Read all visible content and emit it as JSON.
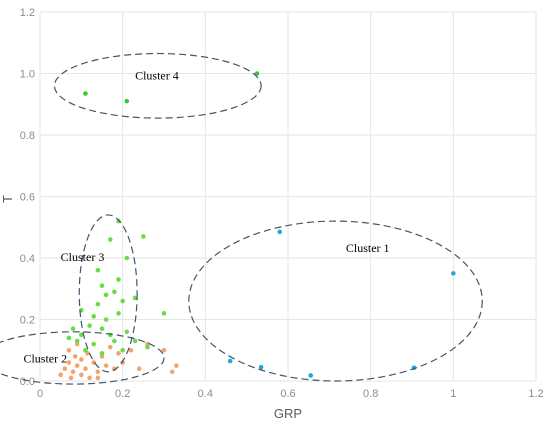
{
  "chart_data": {
    "type": "scatter",
    "xlabel": "GRP",
    "ylabel": "T",
    "xlim": [
      0,
      1.2
    ],
    "ylim": [
      0,
      1.2
    ],
    "xticks": [
      "0",
      "0.2",
      "0.4",
      "0.6",
      "0.8",
      "1",
      "1.2"
    ],
    "yticks": [
      "0.0",
      "0.2",
      "0.4",
      "0.6",
      "0.8",
      "1.0",
      "1.2"
    ],
    "grid": true,
    "colors": {
      "cluster1": "#1fa8e0",
      "cluster2": "#f4a469",
      "cluster3": "#66dd44",
      "cluster4": "#33cc33",
      "outline": "#44546a"
    },
    "series": [
      {
        "points": [
          [
            0.58,
            0.485
          ],
          [
            1.0,
            0.35
          ],
          [
            0.46,
            0.065
          ],
          [
            0.535,
            0.045
          ],
          [
            0.655,
            0.018
          ],
          [
            0.905,
            0.043
          ]
        ]
      },
      {
        "points": [
          [
            0.05,
            0.02
          ],
          [
            0.06,
            0.04
          ],
          [
            0.07,
            0.06
          ],
          [
            0.075,
            0.01
          ],
          [
            0.08,
            0.03
          ],
          [
            0.085,
            0.08
          ],
          [
            0.09,
            0.05
          ],
          [
            0.1,
            0.02
          ],
          [
            0.1,
            0.07
          ],
          [
            0.11,
            0.04
          ],
          [
            0.115,
            0.09
          ],
          [
            0.12,
            0.01
          ],
          [
            0.13,
            0.06
          ],
          [
            0.14,
            0.03
          ],
          [
            0.15,
            0.08
          ],
          [
            0.16,
            0.05
          ],
          [
            0.17,
            0.11
          ],
          [
            0.18,
            0.04
          ],
          [
            0.19,
            0.09
          ],
          [
            0.2,
            0.06
          ],
          [
            0.22,
            0.1
          ],
          [
            0.24,
            0.04
          ],
          [
            0.26,
            0.12
          ],
          [
            0.3,
            0.1
          ],
          [
            0.32,
            0.03
          ],
          [
            0.33,
            0.05
          ],
          [
            0.07,
            0.1
          ],
          [
            0.09,
            0.12
          ],
          [
            0.14,
            0.01
          ]
        ]
      },
      {
        "points": [
          [
            0.19,
            0.52
          ],
          [
            0.25,
            0.47
          ],
          [
            0.17,
            0.46
          ],
          [
            0.21,
            0.4
          ],
          [
            0.14,
            0.36
          ],
          [
            0.19,
            0.33
          ],
          [
            0.15,
            0.31
          ],
          [
            0.16,
            0.28
          ],
          [
            0.18,
            0.29
          ],
          [
            0.14,
            0.25
          ],
          [
            0.2,
            0.26
          ],
          [
            0.23,
            0.27
          ],
          [
            0.1,
            0.23
          ],
          [
            0.13,
            0.21
          ],
          [
            0.16,
            0.2
          ],
          [
            0.19,
            0.22
          ],
          [
            0.12,
            0.18
          ],
          [
            0.15,
            0.17
          ],
          [
            0.08,
            0.17
          ],
          [
            0.1,
            0.15
          ],
          [
            0.17,
            0.15
          ],
          [
            0.21,
            0.16
          ],
          [
            0.09,
            0.13
          ],
          [
            0.13,
            0.12
          ],
          [
            0.18,
            0.13
          ],
          [
            0.11,
            0.1
          ],
          [
            0.15,
            0.09
          ],
          [
            0.2,
            0.1
          ],
          [
            0.23,
            0.13
          ],
          [
            0.26,
            0.11
          ],
          [
            0.3,
            0.22
          ],
          [
            0.07,
            0.14
          ]
        ]
      },
      {
        "points": [
          [
            0.11,
            0.935
          ],
          [
            0.21,
            0.91
          ],
          [
            0.525,
            1.0
          ]
        ]
      }
    ],
    "annotations": [
      {
        "text": "Cluster 1",
        "x": 0.74,
        "y": 0.42
      },
      {
        "text": "Cluster 2",
        "x": -0.04,
        "y": 0.06
      },
      {
        "text": "Cluster 3",
        "x": 0.05,
        "y": 0.39
      },
      {
        "text": "Cluster 4",
        "x": 0.23,
        "y": 0.98
      }
    ],
    "ellipses": [
      {
        "cx": 0.715,
        "cy": 0.26,
        "rx": 0.355,
        "ry": 0.26
      },
      {
        "cx": 0.08,
        "cy": 0.075,
        "rx": 0.22,
        "ry": 0.085
      },
      {
        "cx": 0.165,
        "cy": 0.285,
        "rx": 0.07,
        "ry": 0.255
      },
      {
        "cx": 0.285,
        "cy": 0.96,
        "rx": 0.25,
        "ry": 0.105
      }
    ]
  }
}
